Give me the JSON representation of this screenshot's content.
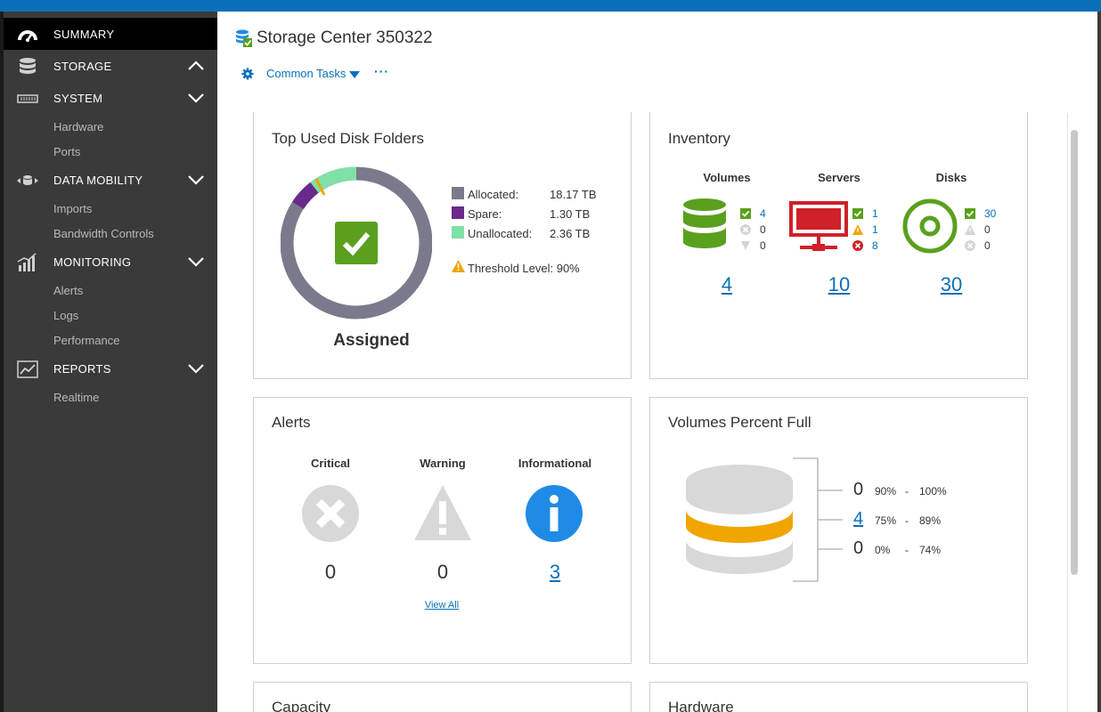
{
  "sidebar": {
    "summary": "SUMMARY",
    "storage": "STORAGE",
    "system": "SYSTEM",
    "system_items": [
      "Hardware",
      "Ports"
    ],
    "data_mobility": "DATA MOBILITY",
    "data_mobility_items": [
      "Imports",
      "Bandwidth Controls"
    ],
    "monitoring": "MONITORING",
    "monitoring_items": [
      "Alerts",
      "Logs",
      "Performance"
    ],
    "reports": "REPORTS",
    "reports_items": [
      "Realtime"
    ]
  },
  "header": {
    "title": "Storage Center 350322",
    "common_tasks": "Common Tasks",
    "more": "···"
  },
  "disk_folders": {
    "title": "Top Used Disk Folders",
    "status": "Assigned",
    "legend": [
      {
        "label": "Allocated:",
        "value": "18.17 TB",
        "color": "#7a7a8c"
      },
      {
        "label": "Spare:",
        "value": "1.30 TB",
        "color": "#6a2a8c"
      },
      {
        "label": "Unallocated:",
        "value": "2.36 TB",
        "color": "#7fe0a8"
      }
    ],
    "threshold": "Threshold Level: 90%",
    "chart_values_tb": [
      18.17,
      1.3,
      2.36
    ],
    "threshold_pct": 90
  },
  "inventory": {
    "title": "Inventory",
    "volumes": {
      "label": "Volumes",
      "ok": "4",
      "bad": "0",
      "down": "0",
      "total": "4"
    },
    "servers": {
      "label": "Servers",
      "ok": "1",
      "warn": "1",
      "bad": "8",
      "total": "10"
    },
    "disks": {
      "label": "Disks",
      "ok": "30",
      "warn": "0",
      "bad": "0",
      "total": "30"
    }
  },
  "alerts": {
    "title": "Alerts",
    "critical": {
      "label": "Critical",
      "count": "0"
    },
    "warning": {
      "label": "Warning",
      "count": "0"
    },
    "informational": {
      "label": "Informational",
      "count": "3"
    },
    "view_all": "View All"
  },
  "volumes_full": {
    "title": "Volumes Percent Full",
    "rows": [
      {
        "count": "0",
        "from": "90%",
        "dash": "-",
        "to": "100%"
      },
      {
        "count": "4",
        "from": "75%",
        "dash": "-",
        "to": "89%"
      },
      {
        "count": "0",
        "from": "0%",
        "dash": "-",
        "to": "74%"
      }
    ]
  },
  "capacity": {
    "title": "Capacity"
  },
  "hardware": {
    "title": "Hardware"
  },
  "colors": {
    "accent": "#0a6fb8",
    "ok": "#5aa01e",
    "warn": "#f0a500",
    "critical": "#d0202a",
    "info": "#1f8be6"
  }
}
